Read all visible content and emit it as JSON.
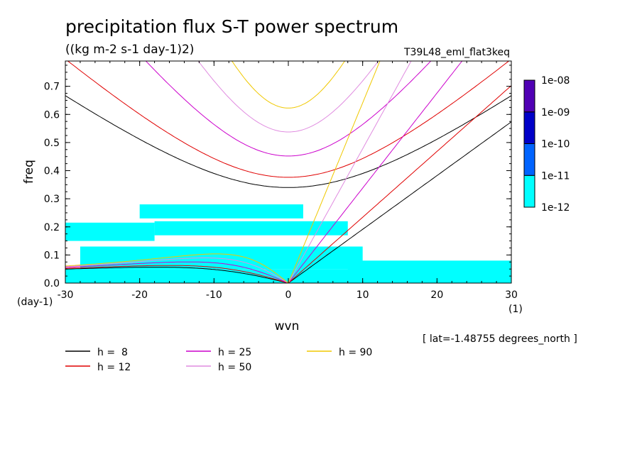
{
  "chart_data": {
    "type": "heatmap",
    "title": "precipitation flux S-T power spectrum",
    "units": "((kg m-2 s-1 day-1)2)",
    "run_label": "T39L48_eml_flat3keq",
    "xlabel": "wvn",
    "ylabel": "freq",
    "x_unit": "(1)",
    "y_unit": "(day-1)",
    "location": "[ lat=-1.48755 degrees_north ]",
    "xlim": [
      -30,
      30
    ],
    "ylim": [
      0,
      0.79
    ],
    "x_ticks": [
      "-30",
      "-20",
      "-10",
      "0",
      "10",
      "20",
      "30"
    ],
    "y_ticks": [
      "0.0",
      "0.1",
      "0.2",
      "0.3",
      "0.4",
      "0.5",
      "0.6",
      "0.7"
    ],
    "colorbar": {
      "levels": [
        "1e-12",
        "1e-11",
        "1e-10",
        "1e-09",
        "1e-08"
      ],
      "colors": [
        "#00ffff",
        "#0064ff",
        "#0000c8",
        "#5000b4"
      ]
    },
    "series": [
      {
        "name": "h =  8",
        "h": 8,
        "color": "#000000"
      },
      {
        "name": "h = 12",
        "h": 12,
        "color": "#e00000"
      },
      {
        "name": "h = 25",
        "h": 25,
        "color": "#cc00cc"
      },
      {
        "name": "h = 50",
        "h": 50,
        "color": "#e08ce0"
      },
      {
        "name": "h = 90",
        "h": 90,
        "color": "#f0c800"
      }
    ],
    "shaded_regions_1e-12": [
      {
        "x": [
          -30,
          30
        ],
        "y": [
          0.0,
          0.05
        ]
      },
      {
        "x": [
          -30,
          -18
        ],
        "y": [
          0.15,
          0.215
        ]
      },
      {
        "x": [
          -28,
          10
        ],
        "y": [
          0.05,
          0.13
        ]
      },
      {
        "x": [
          -18,
          8
        ],
        "y": [
          0.17,
          0.22
        ]
      },
      {
        "x": [
          -20,
          2
        ],
        "y": [
          0.23,
          0.28
        ]
      },
      {
        "x": [
          8,
          30
        ],
        "y": [
          0.0,
          0.08
        ]
      }
    ]
  }
}
